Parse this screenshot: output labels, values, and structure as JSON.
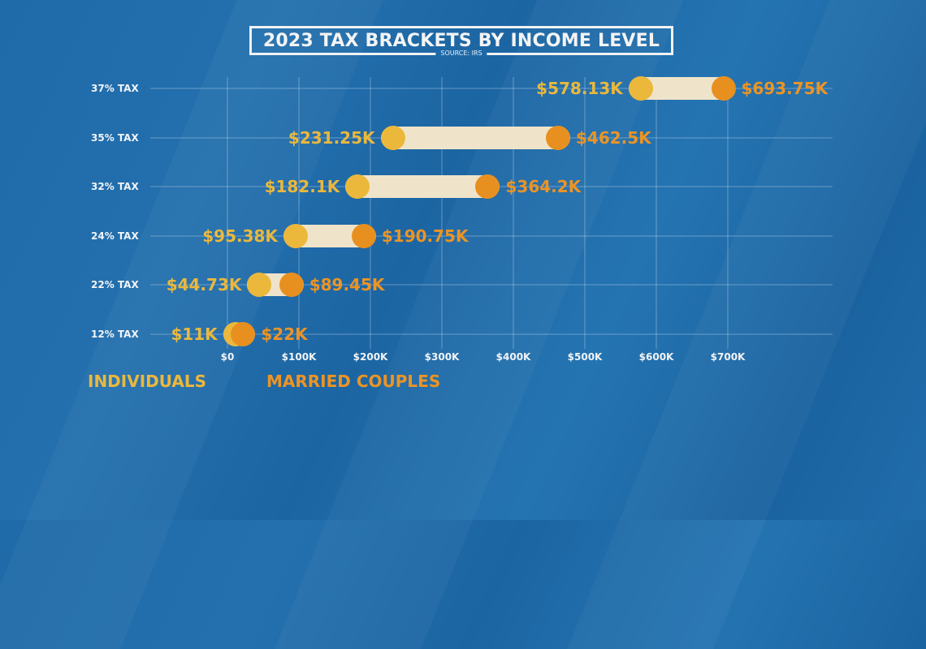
{
  "header": {
    "title": "2023 TAX BRACKETS BY INCOME LEVEL",
    "source": "SOURCE: IRS"
  },
  "colors": {
    "background": "#1f6aa8",
    "individuals": "#ebb83c",
    "married_couples": "#e8901f",
    "bar_fill": "#efe4c9"
  },
  "axis": {
    "ticks": [
      "$0",
      "$100K",
      "$200K",
      "$300K",
      "$400K",
      "$500K",
      "$600K",
      "$700K"
    ]
  },
  "rows": [
    {
      "label": "37% TAX",
      "ind_label": "$578.13K",
      "mar_label": "$693.75K",
      "ind": 578.13,
      "mar": 693.75
    },
    {
      "label": "35% TAX",
      "ind_label": "$231.25K",
      "mar_label": "$462.5K",
      "ind": 231.25,
      "mar": 462.5
    },
    {
      "label": "32% TAX",
      "ind_label": "$182.1K",
      "mar_label": "$364.2K",
      "ind": 182.1,
      "mar": 364.2
    },
    {
      "label": "24% TAX",
      "ind_label": "$95.38K",
      "mar_label": "$190.75K",
      "ind": 95.38,
      "mar": 190.75
    },
    {
      "label": "22% TAX",
      "ind_label": "$44.73K",
      "mar_label": "$89.45K",
      "ind": 44.73,
      "mar": 89.45
    },
    {
      "label": "12% TAX",
      "ind_label": "$11K",
      "mar_label": "$22K",
      "ind": 11,
      "mar": 22
    }
  ],
  "legend": {
    "individuals": "INDIVIDUALS",
    "married_couples": "MARRIED COUPLES"
  },
  "chart_data": {
    "type": "dumbbell",
    "title": "2023 TAX BRACKETS BY INCOME LEVEL",
    "subtitle": "SOURCE: IRS",
    "categories": [
      "37% TAX",
      "35% TAX",
      "32% TAX",
      "24% TAX",
      "22% TAX",
      "12% TAX"
    ],
    "series": [
      {
        "name": "INDIVIDUALS",
        "values": [
          578.13,
          231.25,
          182.1,
          95.38,
          44.73,
          11
        ]
      },
      {
        "name": "MARRIED COUPLES",
        "values": [
          693.75,
          462.5,
          364.2,
          190.75,
          89.45,
          22
        ]
      }
    ],
    "units": "thousands of USD",
    "xlabel": "",
    "ylabel": "",
    "xlim": [
      0,
      700
    ],
    "x_ticks": [
      "$0",
      "$100K",
      "$200K",
      "$300K",
      "$400K",
      "$500K",
      "$600K",
      "$700K"
    ],
    "grid": true,
    "legend_position": "bottom-left"
  }
}
